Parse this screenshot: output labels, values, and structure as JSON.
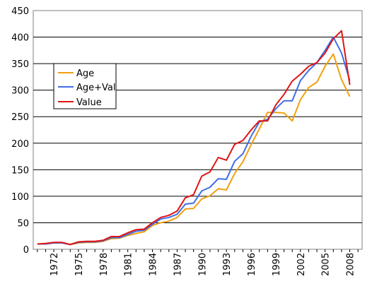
{
  "chart_data": {
    "type": "line",
    "x": [
      1970,
      1971,
      1972,
      1973,
      1974,
      1975,
      1976,
      1977,
      1978,
      1979,
      1980,
      1981,
      1982,
      1983,
      1984,
      1985,
      1986,
      1987,
      1988,
      1989,
      1990,
      1991,
      1992,
      1993,
      1994,
      1995,
      1996,
      1997,
      1998,
      1999,
      2000,
      2001,
      2002,
      2003,
      2004,
      2005,
      2006,
      2007,
      2008,
      2009
    ],
    "x_tick_labels": [
      "1972",
      "1975",
      "1978",
      "1981",
      "1984",
      "1987",
      "1990",
      "1993",
      "1996",
      "1999",
      "2002",
      "2005",
      "2008"
    ],
    "x_tick_values": [
      1972,
      1975,
      1978,
      1981,
      1984,
      1987,
      1990,
      1993,
      1996,
      1999,
      2002,
      2005,
      2008
    ],
    "ylim": [
      0,
      450
    ],
    "y_ticks": [
      0,
      50,
      100,
      150,
      200,
      250,
      300,
      350,
      400,
      450
    ],
    "grid": {
      "y": true,
      "x": false
    },
    "legend_position": "upper-left",
    "series": [
      {
        "name": "Age",
        "color": "#f0a010",
        "values": [
          10,
          10,
          12,
          12,
          9,
          12,
          13,
          13,
          15,
          20,
          21,
          26,
          30,
          33,
          45,
          50,
          53,
          60,
          76,
          77,
          95,
          101,
          114,
          112,
          143,
          165,
          197,
          227,
          258,
          258,
          257,
          242,
          282,
          305,
          315,
          345,
          368,
          320,
          288,
          null
        ]
      },
      {
        "name": "Age+Val",
        "color": "#3e6ee8",
        "values": [
          10,
          10,
          12,
          12,
          9,
          13,
          14,
          14,
          16,
          22,
          22,
          28,
          34,
          36,
          47,
          57,
          60,
          66,
          85,
          87,
          110,
          117,
          133,
          132,
          166,
          180,
          213,
          240,
          245,
          265,
          280,
          280,
          318,
          337,
          352,
          375,
          400,
          370,
          318,
          null
        ]
      },
      {
        "name": "Value",
        "color": "#e01414",
        "values": [
          10,
          11,
          13,
          13,
          9,
          14,
          15,
          15,
          17,
          24,
          24,
          31,
          37,
          38,
          50,
          60,
          64,
          72,
          97,
          103,
          138,
          146,
          173,
          168,
          198,
          205,
          225,
          242,
          242,
          272,
          292,
          317,
          330,
          345,
          352,
          370,
          397,
          412,
          310,
          null
        ]
      }
    ]
  }
}
